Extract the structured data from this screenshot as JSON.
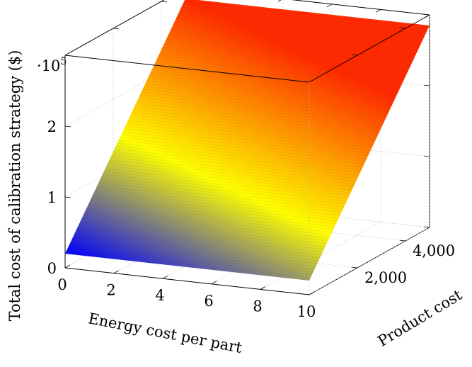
{
  "chart_data": {
    "type": "surface",
    "function": "total_cost = a * energy_cost + b * product_cost + c",
    "grid": true,
    "colormap": [
      "#0000ff",
      "#ffff00",
      "#ff2a00"
    ],
    "xlabel": "Energy cost per part",
    "ylabel": "Product cost",
    "zlabel": "Total cost of calibration strategy ($)",
    "z_multiplier_label": "·10",
    "z_multiplier_exponent": "5",
    "xlim": [
      0,
      10
    ],
    "ylim": [
      0,
      5000
    ],
    "zlim": [
      0,
      300000
    ],
    "x_ticks": [
      {
        "value": 0,
        "label": "0"
      },
      {
        "value": 2,
        "label": "2"
      },
      {
        "value": 4,
        "label": "4"
      },
      {
        "value": 6,
        "label": "6"
      },
      {
        "value": 8,
        "label": "8"
      },
      {
        "value": 10,
        "label": "10"
      }
    ],
    "y_ticks": [
      {
        "value": 2000,
        "label": "2,000"
      },
      {
        "value": 4000,
        "label": "4,000"
      }
    ],
    "z_ticks": [
      {
        "value": 0,
        "label": "0"
      },
      {
        "value": 100000,
        "label": "1"
      },
      {
        "value": 200000,
        "label": "2"
      }
    ],
    "surface_corners": [
      {
        "x": 0,
        "y": 0,
        "z": 20000
      },
      {
        "x": 10,
        "y": 0,
        "z": 20000
      },
      {
        "x": 10,
        "y": 5000,
        "z": 285000
      },
      {
        "x": 0,
        "y": 5000,
        "z": 285000
      }
    ]
  }
}
